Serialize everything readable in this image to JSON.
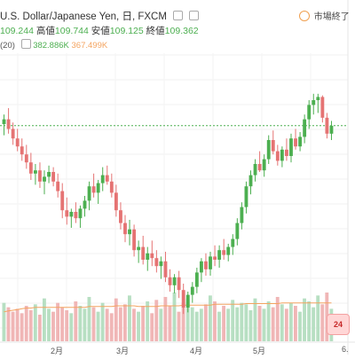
{
  "header": {
    "symbol_title": "U.S. Dollar/Japanese Yen, 日, FXCM",
    "open_value": "109.244",
    "high_label": "高値",
    "high_value": "109.744",
    "low_label": "安値",
    "low_value": "109.125",
    "close_label": "終値",
    "close_value": "109.362"
  },
  "volume_legend": {
    "period": "(20)",
    "volume_value": "382.886K",
    "ma_value": "367.499K"
  },
  "market_status": {
    "label": "市場終了"
  },
  "time_axis": {
    "labels": [
      "2月",
      "3月",
      "4月",
      "5月",
      "6."
    ]
  },
  "colors": {
    "up": "#4caf50",
    "down": "#e57373",
    "volume_up": "#b7dfc2",
    "volume_down": "#f0b6b6",
    "ma_line": "#f4a460",
    "price_line": "#4caf50"
  },
  "icons": {
    "settings": "square-icon",
    "close": "square-icon",
    "market_status": "clock-icon",
    "chart_logo": "chart-logo-icon"
  },
  "chart_data": {
    "type": "candlestick",
    "candles": [
      {
        "o": 109.5,
        "h": 110.1,
        "l": 108.8,
        "c": 109.8
      },
      {
        "o": 109.8,
        "h": 110.5,
        "l": 108.9,
        "c": 109.2
      },
      {
        "o": 109.2,
        "h": 109.6,
        "l": 108.2,
        "c": 108.6
      },
      {
        "o": 108.6,
        "h": 109.2,
        "l": 107.8,
        "c": 108.1
      },
      {
        "o": 108.1,
        "h": 108.6,
        "l": 107.2,
        "c": 107.6
      },
      {
        "o": 107.6,
        "h": 108.2,
        "l": 106.7,
        "c": 107.1
      },
      {
        "o": 107.1,
        "h": 107.7,
        "l": 106.0,
        "c": 106.4
      },
      {
        "o": 106.4,
        "h": 107.0,
        "l": 105.7,
        "c": 106.6
      },
      {
        "o": 106.6,
        "h": 107.1,
        "l": 105.5,
        "c": 105.9
      },
      {
        "o": 105.9,
        "h": 106.6,
        "l": 105.1,
        "c": 106.2
      },
      {
        "o": 106.2,
        "h": 106.9,
        "l": 105.8,
        "c": 106.5
      },
      {
        "o": 106.5,
        "h": 106.8,
        "l": 105.6,
        "c": 105.9
      },
      {
        "o": 105.9,
        "h": 106.4,
        "l": 104.9,
        "c": 105.3
      },
      {
        "o": 105.3,
        "h": 105.8,
        "l": 103.6,
        "c": 104.1
      },
      {
        "o": 104.1,
        "h": 104.9,
        "l": 103.2,
        "c": 103.7
      },
      {
        "o": 103.7,
        "h": 104.2,
        "l": 103.0,
        "c": 104.0
      },
      {
        "o": 104.0,
        "h": 104.6,
        "l": 103.3,
        "c": 103.6
      },
      {
        "o": 103.6,
        "h": 104.4,
        "l": 103.0,
        "c": 104.2
      },
      {
        "o": 104.2,
        "h": 105.0,
        "l": 103.7,
        "c": 104.7
      },
      {
        "o": 104.7,
        "h": 105.9,
        "l": 104.1,
        "c": 105.6
      },
      {
        "o": 105.6,
        "h": 106.4,
        "l": 104.9,
        "c": 105.2
      },
      {
        "o": 105.2,
        "h": 106.0,
        "l": 104.5,
        "c": 105.8
      },
      {
        "o": 105.8,
        "h": 106.8,
        "l": 105.3,
        "c": 106.3
      },
      {
        "o": 106.3,
        "h": 106.9,
        "l": 105.7,
        "c": 105.9
      },
      {
        "o": 105.9,
        "h": 106.4,
        "l": 104.9,
        "c": 105.2
      },
      {
        "o": 105.2,
        "h": 105.7,
        "l": 103.7,
        "c": 104.1
      },
      {
        "o": 104.1,
        "h": 104.6,
        "l": 102.9,
        "c": 103.3
      },
      {
        "o": 103.3,
        "h": 103.8,
        "l": 102.1,
        "c": 102.6
      },
      {
        "o": 102.6,
        "h": 103.5,
        "l": 101.9,
        "c": 102.9
      },
      {
        "o": 102.9,
        "h": 103.2,
        "l": 101.2,
        "c": 101.6
      },
      {
        "o": 101.6,
        "h": 102.2,
        "l": 100.8,
        "c": 101.8
      },
      {
        "o": 101.8,
        "h": 102.5,
        "l": 100.7,
        "c": 101.0
      },
      {
        "o": 101.0,
        "h": 101.8,
        "l": 100.3,
        "c": 101.4
      },
      {
        "o": 101.4,
        "h": 102.2,
        "l": 100.6,
        "c": 101.1
      },
      {
        "o": 101.1,
        "h": 101.6,
        "l": 100.2,
        "c": 100.6
      },
      {
        "o": 100.6,
        "h": 101.2,
        "l": 99.8,
        "c": 100.9
      },
      {
        "o": 100.9,
        "h": 101.5,
        "l": 99.6,
        "c": 99.9
      },
      {
        "o": 99.9,
        "h": 100.4,
        "l": 99.0,
        "c": 99.4
      },
      {
        "o": 99.4,
        "h": 100.1,
        "l": 98.9,
        "c": 99.9
      },
      {
        "o": 99.9,
        "h": 100.3,
        "l": 98.6,
        "c": 99.1
      },
      {
        "o": 99.1,
        "h": 99.5,
        "l": 97.6,
        "c": 98.0
      },
      {
        "o": 98.0,
        "h": 99.0,
        "l": 97.7,
        "c": 98.8
      },
      {
        "o": 98.8,
        "h": 99.6,
        "l": 98.3,
        "c": 99.3
      },
      {
        "o": 99.3,
        "h": 100.5,
        "l": 98.9,
        "c": 100.2
      },
      {
        "o": 100.2,
        "h": 101.1,
        "l": 99.6,
        "c": 100.9
      },
      {
        "o": 100.9,
        "h": 101.4,
        "l": 100.0,
        "c": 100.4
      },
      {
        "o": 100.4,
        "h": 101.5,
        "l": 100.0,
        "c": 101.2
      },
      {
        "o": 101.2,
        "h": 101.9,
        "l": 100.6,
        "c": 101.0
      },
      {
        "o": 101.0,
        "h": 101.9,
        "l": 100.5,
        "c": 101.6
      },
      {
        "o": 101.6,
        "h": 102.3,
        "l": 101.0,
        "c": 101.3
      },
      {
        "o": 101.3,
        "h": 102.0,
        "l": 100.9,
        "c": 101.8
      },
      {
        "o": 101.8,
        "h": 102.6,
        "l": 101.3,
        "c": 102.3
      },
      {
        "o": 102.3,
        "h": 103.6,
        "l": 101.9,
        "c": 103.3
      },
      {
        "o": 103.3,
        "h": 104.6,
        "l": 102.9,
        "c": 104.3
      },
      {
        "o": 104.3,
        "h": 105.9,
        "l": 103.9,
        "c": 105.6
      },
      {
        "o": 105.6,
        "h": 106.6,
        "l": 105.1,
        "c": 106.3
      },
      {
        "o": 106.3,
        "h": 107.3,
        "l": 105.9,
        "c": 107.0
      },
      {
        "o": 107.0,
        "h": 107.8,
        "l": 106.5,
        "c": 106.6
      },
      {
        "o": 106.6,
        "h": 107.6,
        "l": 106.2,
        "c": 107.3
      },
      {
        "o": 107.3,
        "h": 108.8,
        "l": 107.0,
        "c": 108.5
      },
      {
        "o": 108.5,
        "h": 109.1,
        "l": 107.6,
        "c": 107.8
      },
      {
        "o": 107.8,
        "h": 108.2,
        "l": 106.9,
        "c": 107.2
      },
      {
        "o": 107.2,
        "h": 108.1,
        "l": 106.8,
        "c": 107.9
      },
      {
        "o": 107.9,
        "h": 108.6,
        "l": 107.2,
        "c": 107.5
      },
      {
        "o": 107.5,
        "h": 108.9,
        "l": 107.1,
        "c": 108.6
      },
      {
        "o": 108.6,
        "h": 109.2,
        "l": 107.9,
        "c": 108.1
      },
      {
        "o": 108.1,
        "h": 109.0,
        "l": 107.8,
        "c": 108.7
      },
      {
        "o": 108.7,
        "h": 110.1,
        "l": 108.3,
        "c": 109.8
      },
      {
        "o": 109.8,
        "h": 111.0,
        "l": 109.2,
        "c": 110.7
      },
      {
        "o": 110.7,
        "h": 111.4,
        "l": 110.1,
        "c": 111.0
      },
      {
        "o": 111.0,
        "h": 111.4,
        "l": 110.2,
        "c": 111.2
      },
      {
        "o": 111.2,
        "h": 111.3,
        "l": 109.6,
        "c": 109.9
      },
      {
        "o": 109.9,
        "h": 110.2,
        "l": 108.6,
        "c": 108.9
      },
      {
        "o": 108.9,
        "h": 109.7,
        "l": 108.5,
        "c": 109.4
      }
    ],
    "volume": [
      52,
      46,
      40,
      44,
      38,
      48,
      42,
      50,
      36,
      58,
      44,
      40,
      52,
      46,
      42,
      38,
      54,
      48,
      44,
      60,
      46,
      40,
      52,
      44,
      38,
      58,
      46,
      50,
      62,
      44,
      40,
      48,
      54,
      38,
      56,
      44,
      60,
      48,
      66,
      40,
      52,
      58,
      46,
      40,
      44,
      50,
      62,
      54,
      40,
      48,
      44,
      56,
      46,
      52,
      50,
      42,
      58,
      48,
      44,
      54,
      46,
      60,
      50,
      44,
      52,
      48,
      40,
      58,
      54,
      46,
      62,
      50,
      66,
      44
    ],
    "volume_ma": [
      40,
      41,
      42,
      43,
      44,
      45,
      45,
      46,
      46,
      46,
      46,
      46,
      46,
      46,
      46,
      46,
      46,
      46,
      46,
      47,
      47,
      47,
      47,
      47,
      47,
      48,
      48,
      48,
      48,
      48,
      47,
      47,
      47,
      47,
      47,
      48,
      48,
      48,
      48,
      48,
      49,
      49,
      49,
      49,
      49,
      49,
      49,
      50,
      50,
      50,
      50,
      50,
      50,
      50,
      51,
      51,
      51,
      51,
      51,
      51,
      51,
      51,
      52,
      52,
      52,
      52,
      52,
      52,
      52,
      52,
      52,
      52,
      52,
      52
    ],
    "time_labels": [
      "2月",
      "3月",
      "4月",
      "5月",
      "6."
    ],
    "last_price_line": 109.4
  }
}
